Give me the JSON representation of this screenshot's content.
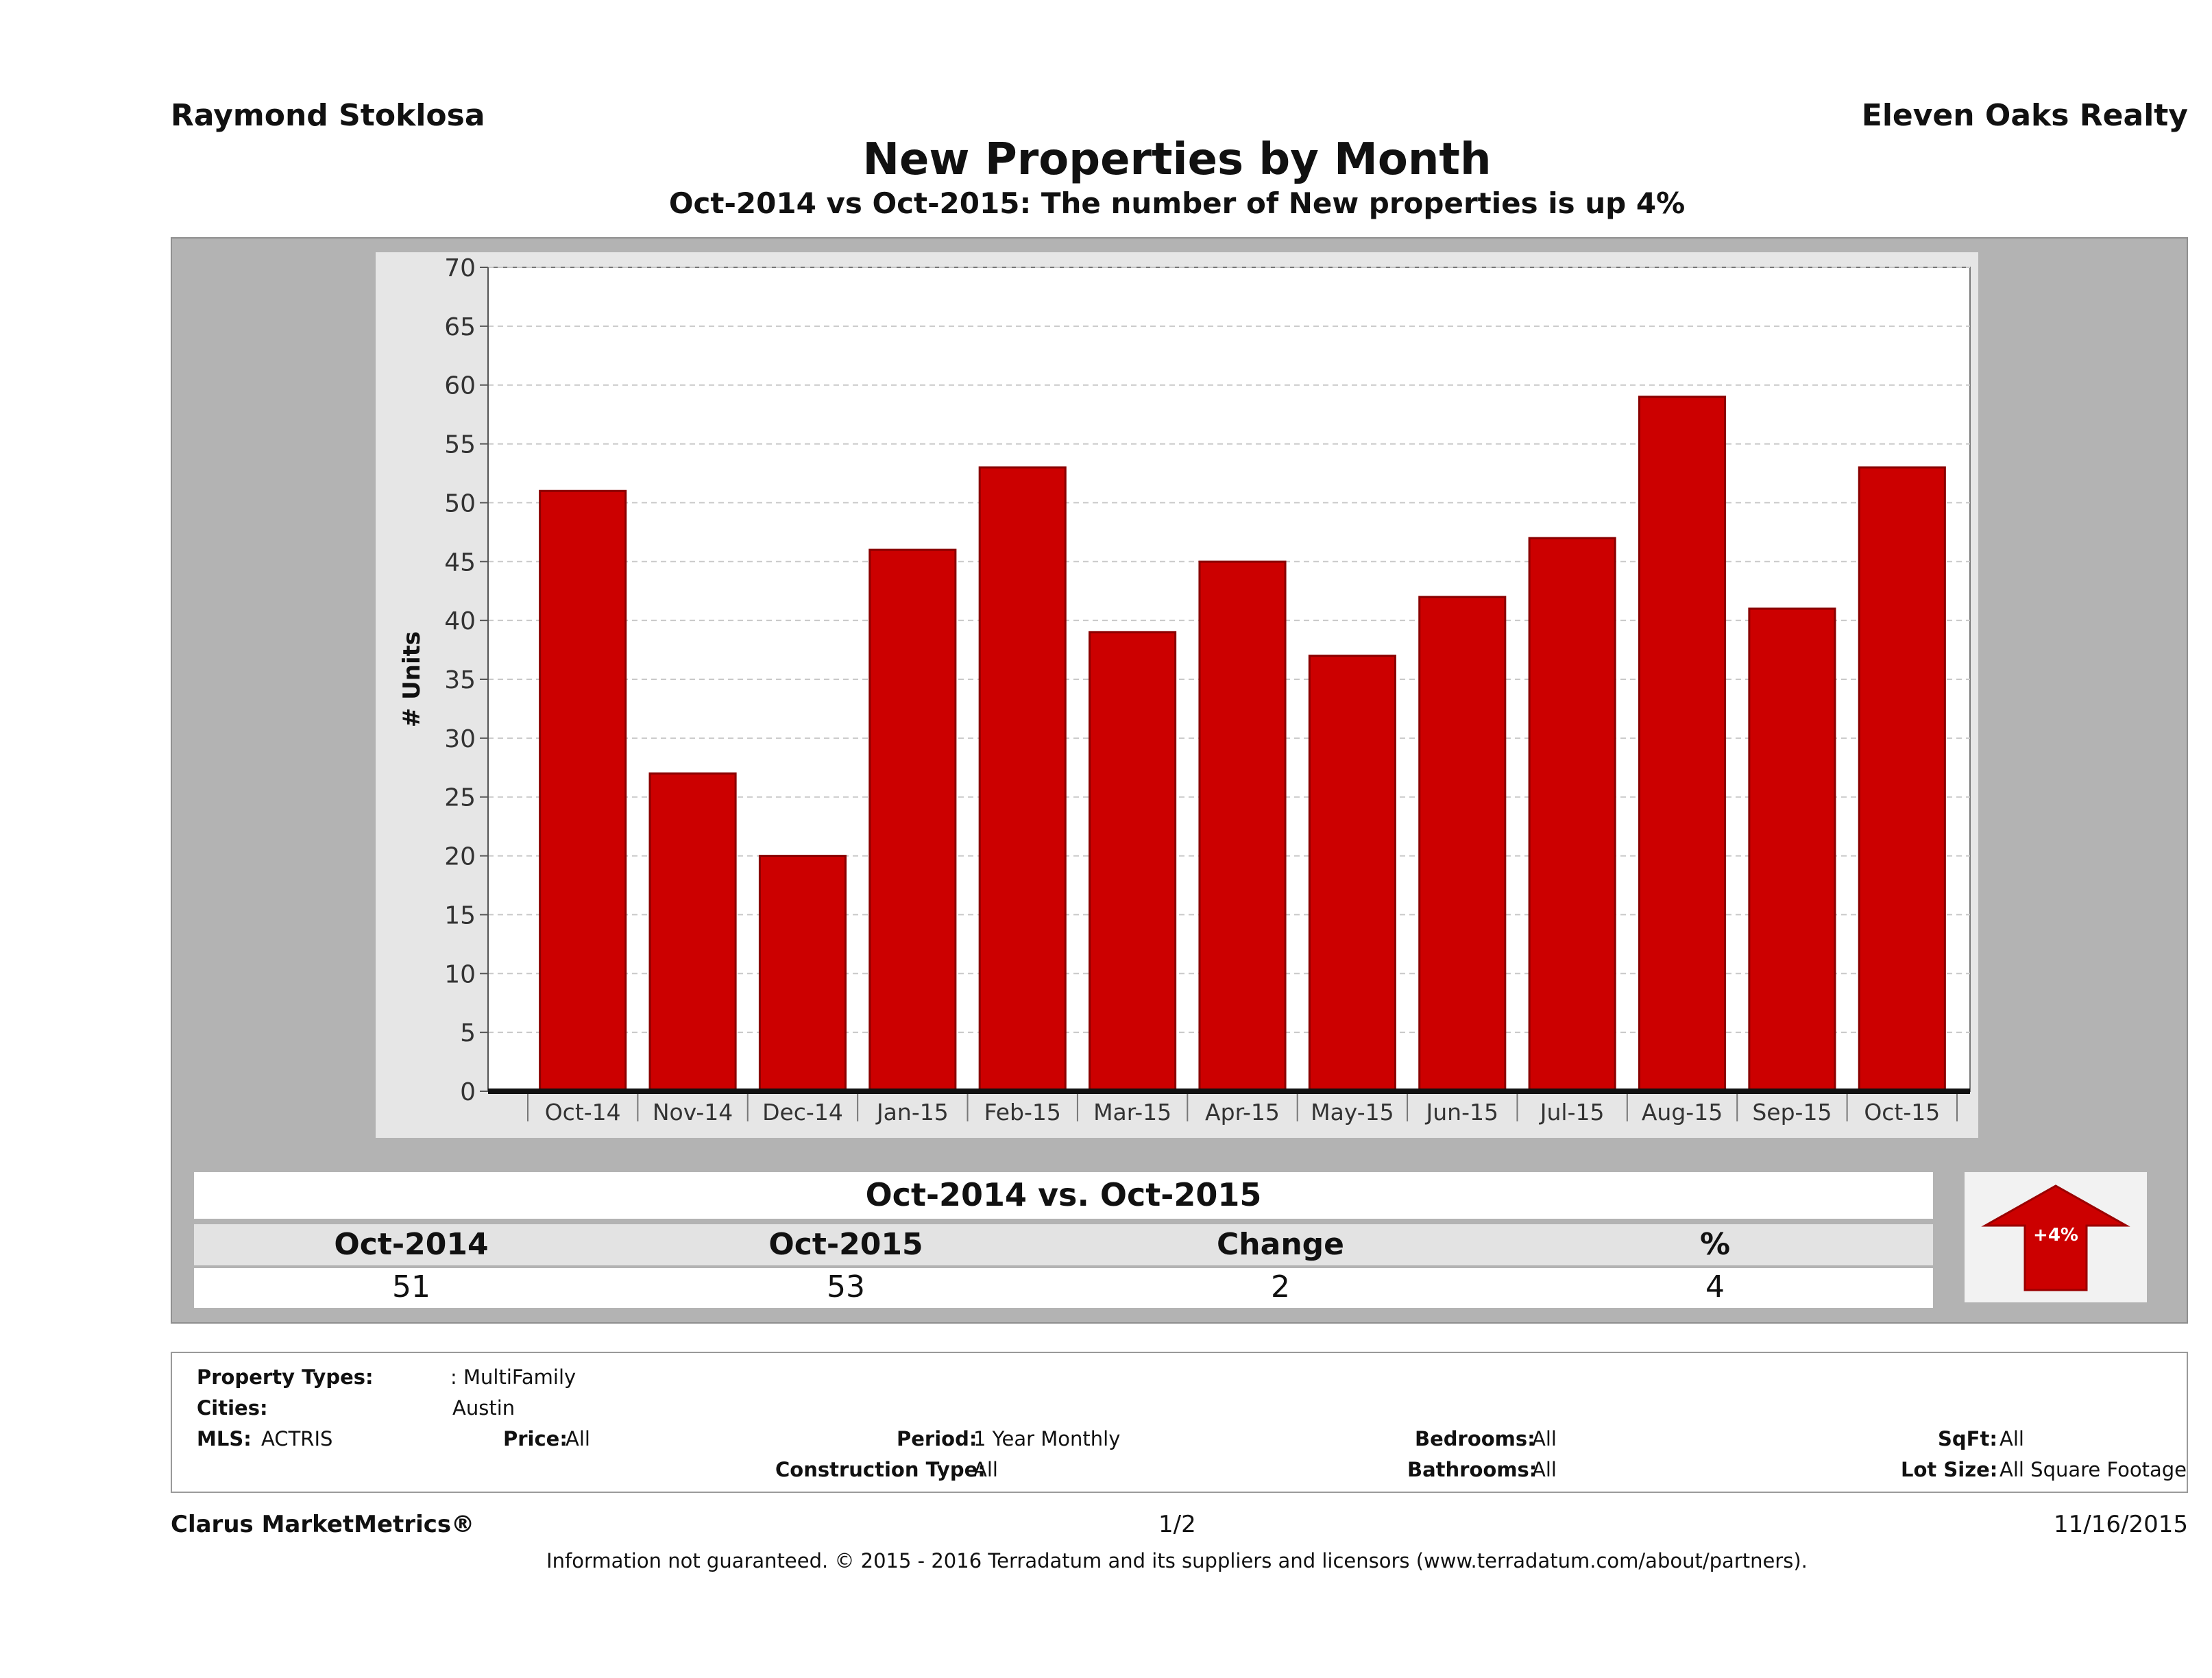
{
  "header": {
    "agent": "Raymond Stoklosa",
    "company": "Eleven Oaks Realty",
    "title": "New Properties by Month",
    "subtitle": "Oct-2014 vs Oct-2015: The number of New  properties is up 4%"
  },
  "chart_data": {
    "type": "bar",
    "title": "New Properties by Month",
    "subtitle": "Oct-2014 vs Oct-2015: The number of New  properties is up 4%",
    "xlabel": "",
    "ylabel": "# Units",
    "categories": [
      "Oct-14",
      "Nov-14",
      "Dec-14",
      "Jan-15",
      "Feb-15",
      "Mar-15",
      "Apr-15",
      "May-15",
      "Jun-15",
      "Jul-15",
      "Aug-15",
      "Sep-15",
      "Oct-15"
    ],
    "values": [
      51,
      27,
      20,
      46,
      53,
      39,
      45,
      37,
      42,
      47,
      59,
      41,
      53
    ],
    "ylim": [
      0,
      70
    ],
    "yticks": [
      0,
      5,
      10,
      15,
      20,
      25,
      30,
      35,
      40,
      45,
      50,
      55,
      60,
      65,
      70
    ],
    "grid": true,
    "bar_color": "#cc0000"
  },
  "summary": {
    "title": "Oct-2014 vs. Oct-2015",
    "headers": [
      "Oct-2014",
      "Oct-2015",
      "Change",
      "%"
    ],
    "values": [
      "51",
      "53",
      "2",
      "4"
    ],
    "badge": "+4%"
  },
  "criteria": {
    "property_types_label": "Property Types:",
    "property_types_value": ": MultiFamily",
    "cities_label": "Cities:",
    "cities_value": "Austin",
    "mls_label": "MLS:",
    "mls_value": "ACTRIS",
    "price_label": "Price:",
    "price_value": "All",
    "period_label": "Period:",
    "period_value": "1 Year Monthly",
    "construction_label": "Construction Type:",
    "construction_value": "All",
    "bedrooms_label": "Bedrooms:",
    "bedrooms_value": "All",
    "bathrooms_label": "Bathrooms:",
    "bathrooms_value": "All",
    "sqft_label": "SqFt:",
    "sqft_value": "All",
    "lotsize_label": "Lot Size:",
    "lotsize_value": "All Square Footage"
  },
  "footer": {
    "brand": "Clarus MarketMetrics®",
    "page": "1/2",
    "date": "11/16/2015",
    "disclaimer": "Information not guaranteed. © 2015 - 2016 Terradatum and its suppliers and licensors (www.terradatum.com/about/partners)."
  }
}
